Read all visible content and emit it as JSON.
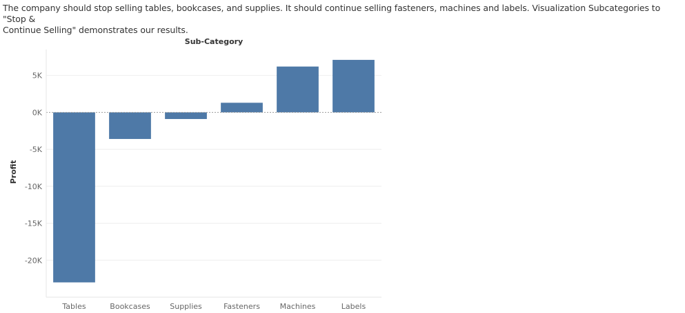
{
  "caption": {
    "line1": "The company should stop selling tables, bookcases, and supplies. It should continue selling fasteners, machines and labels. Visualization Subcategories to \"Stop &",
    "line2": "Continue Selling\" demonstrates our results."
  },
  "chart_data": {
    "type": "bar",
    "column_header": "Sub-Category",
    "ylabel": "Profit",
    "categories": [
      "Tables",
      "Bookcases",
      "Supplies",
      "Fasteners",
      "Machines",
      "Labels"
    ],
    "values": [
      -23000,
      -3600,
      -900,
      1300,
      6200,
      7100
    ],
    "ylim": [
      -25000,
      8500
    ],
    "yticks": [
      5000,
      0,
      -5000,
      -10000,
      -15000,
      -20000
    ],
    "ytick_labels": [
      "5K",
      "0K",
      "-5K",
      "-10K",
      "-15K",
      "-20K"
    ],
    "bar_color": "#4e79a7",
    "grid": true
  }
}
